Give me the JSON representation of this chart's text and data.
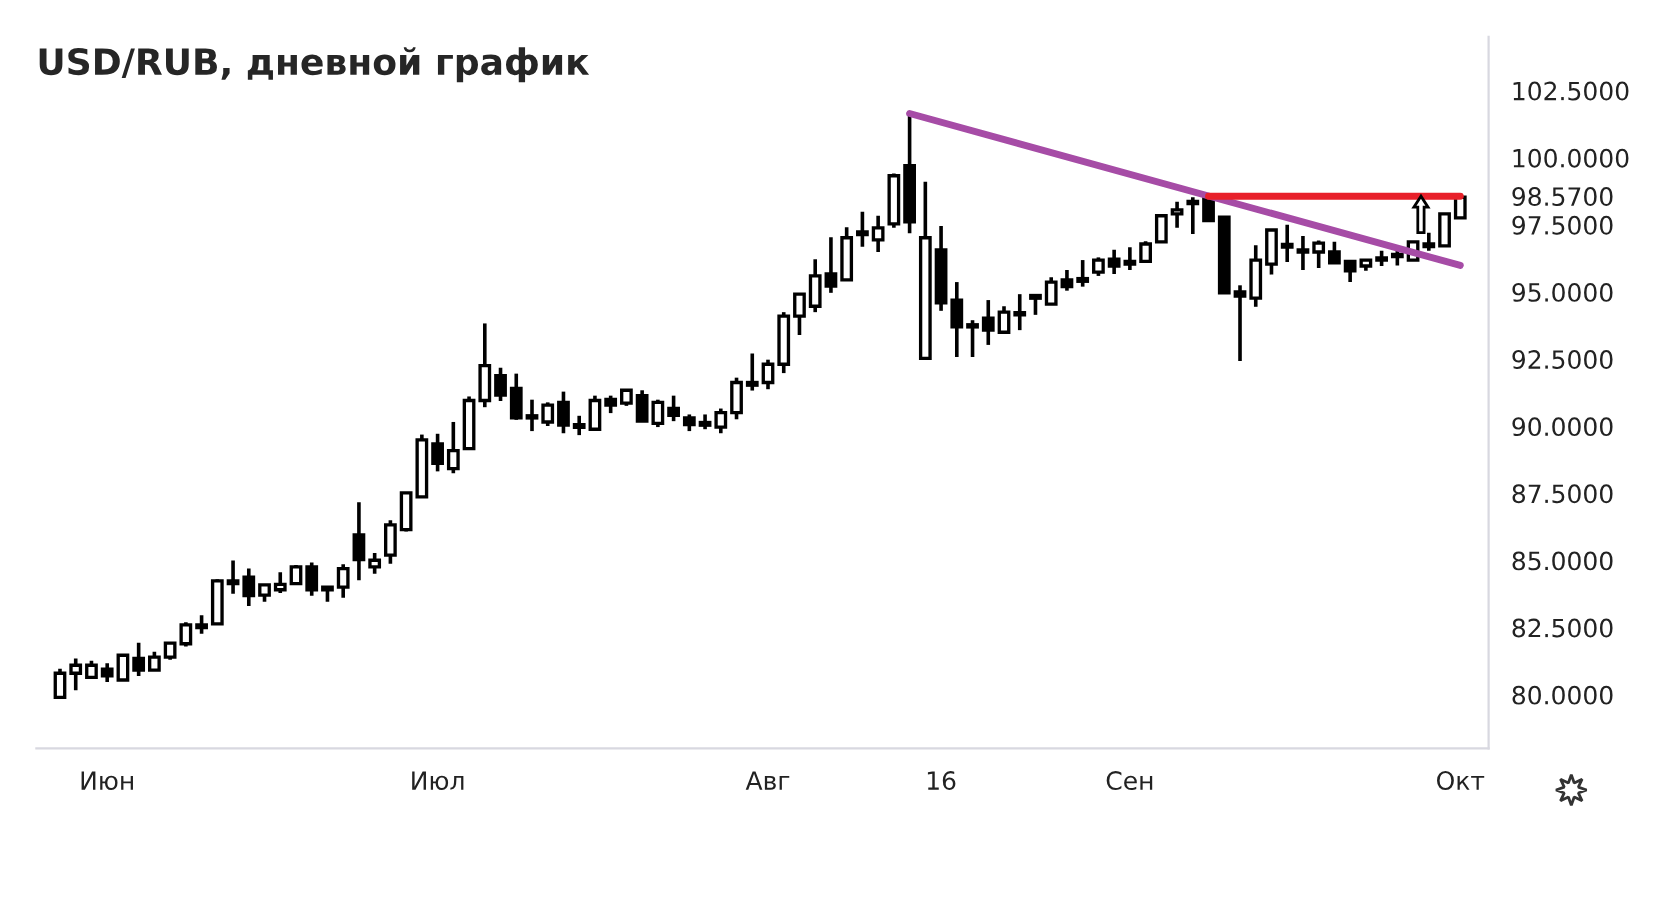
{
  "chart_data": {
    "type": "candlestick",
    "title": "USD/RUB, дневной график",
    "categories": [
      null,
      null,
      null,
      "Июн",
      null,
      null,
      null,
      null,
      null,
      null,
      null,
      null,
      null,
      null,
      null,
      null,
      null,
      null,
      null,
      null,
      null,
      null,
      null,
      null,
      "Июл",
      null,
      null,
      null,
      null,
      null,
      null,
      null,
      null,
      null,
      null,
      null,
      null,
      null,
      null,
      null,
      null,
      null,
      null,
      null,
      null,
      "Авг",
      null,
      null,
      null,
      null,
      null,
      null,
      null,
      null,
      null,
      null,
      "16",
      null,
      null,
      null,
      null,
      null,
      null,
      null,
      null,
      null,
      null,
      null,
      "Сен",
      null,
      null,
      null,
      null,
      null,
      null,
      null,
      null,
      null,
      null,
      null,
      null,
      null,
      null,
      null,
      null,
      null,
      null,
      null,
      null,
      "Окт"
    ],
    "color": "#000000",
    "ohlc": [
      [
        79.9,
        80.97,
        79.9,
        80.8
      ],
      [
        80.8,
        81.35,
        80.17,
        81.1
      ],
      [
        80.65,
        81.27,
        80.65,
        81.1
      ],
      [
        80.95,
        81.17,
        80.47,
        80.7
      ],
      [
        80.55,
        81.47,
        80.55,
        81.47
      ],
      [
        81.35,
        81.94,
        80.7,
        80.92
      ],
      [
        80.92,
        81.6,
        80.92,
        81.4
      ],
      [
        81.4,
        81.92,
        81.3,
        81.92
      ],
      [
        81.9,
        82.7,
        81.8,
        82.6
      ],
      [
        82.6,
        82.96,
        82.27,
        82.5
      ],
      [
        82.64,
        84.3,
        82.64,
        84.24
      ],
      [
        84.24,
        85.0,
        83.76,
        84.14
      ],
      [
        84.38,
        84.7,
        83.31,
        83.69
      ],
      [
        83.71,
        84.09,
        83.46,
        84.09
      ],
      [
        83.91,
        84.56,
        83.79,
        84.11
      ],
      [
        84.14,
        84.83,
        84.14,
        84.76
      ],
      [
        84.76,
        84.93,
        83.69,
        83.91
      ],
      [
        84.01,
        84.01,
        83.46,
        83.91
      ],
      [
        84.01,
        84.86,
        83.61,
        84.7
      ],
      [
        85.95,
        87.17,
        84.26,
        85.03
      ],
      [
        84.76,
        85.28,
        84.51,
        85.01
      ],
      [
        85.2,
        86.5,
        84.88,
        86.33
      ],
      [
        86.15,
        87.52,
        86.08,
        87.52
      ],
      [
        87.37,
        89.69,
        87.37,
        89.49
      ],
      [
        89.34,
        89.72,
        88.32,
        88.62
      ],
      [
        88.42,
        90.16,
        88.25,
        89.09
      ],
      [
        89.17,
        91.11,
        89.17,
        90.96
      ],
      [
        90.96,
        93.83,
        90.71,
        92.26
      ],
      [
        91.88,
        92.18,
        90.94,
        91.16
      ],
      [
        91.41,
        91.96,
        90.24,
        90.31
      ],
      [
        90.36,
        90.99,
        89.82,
        90.31
      ],
      [
        90.16,
        90.89,
        90.01,
        90.79
      ],
      [
        90.89,
        91.29,
        89.74,
        90.04
      ],
      [
        90.06,
        90.39,
        89.67,
        89.96
      ],
      [
        89.89,
        91.14,
        89.89,
        90.96
      ],
      [
        91.0,
        91.14,
        90.49,
        90.79
      ],
      [
        90.86,
        91.34,
        90.76,
        91.34
      ],
      [
        91.14,
        91.34,
        90.19,
        90.19
      ],
      [
        90.11,
        90.99,
        89.97,
        90.89
      ],
      [
        90.66,
        91.14,
        90.19,
        90.41
      ],
      [
        90.31,
        90.44,
        89.82,
        90.06
      ],
      [
        90.14,
        90.44,
        89.89,
        90.04
      ],
      [
        89.97,
        90.66,
        89.74,
        90.51
      ],
      [
        90.51,
        91.81,
        90.26,
        91.63
      ],
      [
        91.63,
        92.71,
        91.33,
        91.53
      ],
      [
        91.63,
        92.48,
        91.38,
        92.31
      ],
      [
        92.31,
        94.25,
        91.98,
        94.1
      ],
      [
        94.1,
        94.92,
        93.4,
        94.92
      ],
      [
        94.47,
        96.22,
        94.25,
        95.6
      ],
      [
        95.67,
        97.04,
        94.97,
        95.22
      ],
      [
        95.45,
        97.41,
        95.45,
        97.02
      ],
      [
        97.24,
        97.99,
        96.69,
        97.14
      ],
      [
        96.94,
        97.84,
        96.49,
        97.39
      ],
      [
        97.54,
        99.41,
        97.39,
        99.33
      ],
      [
        99.71,
        101.65,
        97.19,
        97.61
      ],
      [
        92.53,
        99.11,
        92.53,
        97.02
      ],
      [
        96.57,
        97.46,
        94.3,
        94.6
      ],
      [
        94.7,
        95.37,
        92.58,
        93.7
      ],
      [
        93.75,
        93.95,
        92.58,
        93.7
      ],
      [
        94.03,
        94.7,
        93.03,
        93.58
      ],
      [
        93.5,
        94.47,
        93.5,
        94.25
      ],
      [
        94.15,
        94.92,
        93.58,
        94.2
      ],
      [
        94.87,
        94.92,
        94.15,
        94.77
      ],
      [
        94.55,
        95.55,
        94.55,
        95.37
      ],
      [
        95.45,
        95.82,
        95.05,
        95.2
      ],
      [
        95.5,
        96.19,
        95.2,
        95.4
      ],
      [
        95.74,
        96.29,
        95.6,
        96.19
      ],
      [
        96.22,
        96.57,
        95.67,
        95.97
      ],
      [
        96.14,
        96.67,
        95.82,
        96.04
      ],
      [
        96.14,
        96.89,
        96.14,
        96.79
      ],
      [
        96.87,
        97.91,
        96.87,
        97.84
      ],
      [
        97.91,
        98.36,
        97.39,
        98.06
      ],
      [
        98.29,
        98.53,
        97.16,
        98.36
      ],
      [
        98.6,
        98.6,
        97.66,
        97.66
      ],
      [
        97.79,
        97.79,
        94.97,
        94.97
      ],
      [
        95.0,
        95.25,
        92.43,
        94.85
      ],
      [
        94.77,
        96.74,
        94.45,
        96.19
      ],
      [
        96.04,
        97.31,
        95.65,
        97.31
      ],
      [
        96.77,
        97.51,
        96.12,
        96.67
      ],
      [
        96.54,
        97.09,
        95.82,
        96.49
      ],
      [
        96.49,
        96.92,
        95.89,
        96.82
      ],
      [
        96.49,
        96.87,
        96.09,
        96.09
      ],
      [
        96.14,
        96.14,
        95.37,
        95.79
      ],
      [
        95.97,
        96.19,
        95.79,
        96.19
      ],
      [
        96.19,
        96.54,
        95.97,
        96.27
      ],
      [
        96.32,
        96.67,
        95.99,
        96.39
      ],
      [
        96.19,
        96.87,
        96.19,
        96.87
      ],
      [
        96.79,
        97.21,
        96.54,
        96.69
      ],
      [
        96.72,
        97.91,
        96.72,
        97.91
      ],
      [
        97.76,
        98.53,
        97.76,
        98.53
      ]
    ],
    "series": [
      {
        "type": "line",
        "color": "#a64ca6",
        "values": [
          null,
          null,
          null,
          null,
          null,
          null,
          null,
          null,
          null,
          null,
          null,
          null,
          null,
          null,
          null,
          null,
          null,
          null,
          null,
          null,
          null,
          null,
          null,
          null,
          null,
          null,
          null,
          null,
          null,
          null,
          null,
          null,
          null,
          null,
          null,
          null,
          null,
          null,
          null,
          null,
          null,
          null,
          null,
          null,
          null,
          null,
          null,
          null,
          null,
          null,
          null,
          null,
          null,
          null,
          101.65,
          null,
          null,
          null,
          null,
          null,
          null,
          null,
          null,
          null,
          null,
          null,
          null,
          null,
          null,
          null,
          null,
          null,
          null,
          null,
          null,
          null,
          null,
          null,
          null,
          null,
          null,
          null,
          null,
          null,
          null,
          null,
          null,
          null,
          null,
          95.99
        ]
      },
      {
        "type": "line",
        "color": "#e8202a",
        "values": [
          null,
          null,
          null,
          null,
          null,
          null,
          null,
          null,
          null,
          null,
          null,
          null,
          null,
          null,
          null,
          null,
          null,
          null,
          null,
          null,
          null,
          null,
          null,
          null,
          null,
          null,
          null,
          null,
          null,
          null,
          null,
          null,
          null,
          null,
          null,
          null,
          null,
          null,
          null,
          null,
          null,
          null,
          null,
          null,
          null,
          null,
          null,
          null,
          null,
          null,
          null,
          null,
          null,
          null,
          null,
          null,
          null,
          null,
          null,
          null,
          null,
          null,
          null,
          null,
          null,
          null,
          null,
          null,
          null,
          null,
          null,
          null,
          null,
          98.57,
          null,
          null,
          null,
          null,
          null,
          null,
          null,
          null,
          null,
          null,
          null,
          null,
          null,
          null,
          null,
          98.57
        ]
      }
    ],
    "ylim": [
      78,
      104.5
    ],
    "yticks": [
      {
        "value": 80,
        "label": "80.0000"
      },
      {
        "value": 82.5,
        "label": "82.5000"
      },
      {
        "value": 85,
        "label": "85.0000"
      },
      {
        "value": 87.5,
        "label": "87.5000"
      },
      {
        "value": 90,
        "label": "90.0000"
      },
      {
        "value": 92.5,
        "label": "92.5000"
      },
      {
        "value": 95,
        "label": "95.0000"
      },
      {
        "value": 97.5,
        "label": "97.5000"
      },
      {
        "value": 98.57,
        "label": "98.5700"
      },
      {
        "value": 100,
        "label": "100.0000"
      },
      {
        "value": 102.5,
        "label": "102.5000"
      }
    ],
    "grid": false
  }
}
